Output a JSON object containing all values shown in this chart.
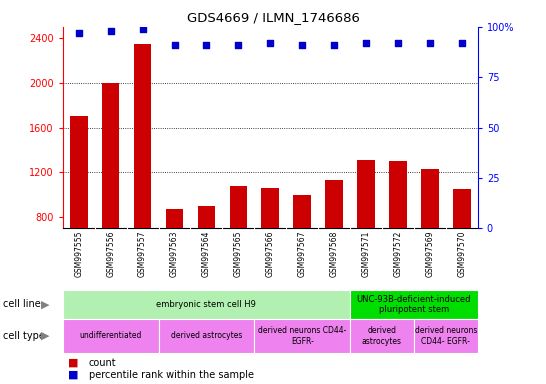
{
  "title": "GDS4669 / ILMN_1746686",
  "samples": [
    "GSM997555",
    "GSM997556",
    "GSM997557",
    "GSM997563",
    "GSM997564",
    "GSM997565",
    "GSM997566",
    "GSM997567",
    "GSM997568",
    "GSM997571",
    "GSM997572",
    "GSM997569",
    "GSM997570"
  ],
  "counts": [
    1700,
    2000,
    2350,
    870,
    900,
    1080,
    1060,
    1000,
    1130,
    1310,
    1300,
    1230,
    1050
  ],
  "percentile_ranks": [
    97,
    98,
    99,
    91,
    91,
    91,
    92,
    91,
    91,
    92,
    92,
    92,
    92
  ],
  "ylim_left": [
    700,
    2500
  ],
  "ylim_right": [
    0,
    100
  ],
  "yticks_left": [
    800,
    1200,
    1600,
    2000,
    2400
  ],
  "yticks_right": [
    0,
    25,
    50,
    75,
    100
  ],
  "bar_color": "#cc0000",
  "dot_color": "#0000cc",
  "cell_line_groups": [
    {
      "label": "embryonic stem cell H9",
      "start": 0,
      "end": 9,
      "color": "#b2f0b2"
    },
    {
      "label": "UNC-93B-deficient-induced\npluripotent stem",
      "start": 9,
      "end": 13,
      "color": "#00dd00"
    }
  ],
  "cell_type_groups": [
    {
      "label": "undifferentiated",
      "start": 0,
      "end": 3,
      "color": "#ee82ee"
    },
    {
      "label": "derived astrocytes",
      "start": 3,
      "end": 6,
      "color": "#ee82ee"
    },
    {
      "label": "derived neurons CD44-\nEGFR-",
      "start": 6,
      "end": 9,
      "color": "#ee82ee"
    },
    {
      "label": "derived\nastrocytes",
      "start": 9,
      "end": 11,
      "color": "#ee82ee"
    },
    {
      "label": "derived neurons\nCD44- EGFR-",
      "start": 11,
      "end": 13,
      "color": "#ee82ee"
    }
  ],
  "legend_count_color": "#cc0000",
  "legend_dot_color": "#0000cc",
  "xtick_bg_color": "#c8c8c8",
  "plot_bg_color": "#ffffff",
  "grid_line_color": "#000000",
  "percentile_scale": 18.0
}
